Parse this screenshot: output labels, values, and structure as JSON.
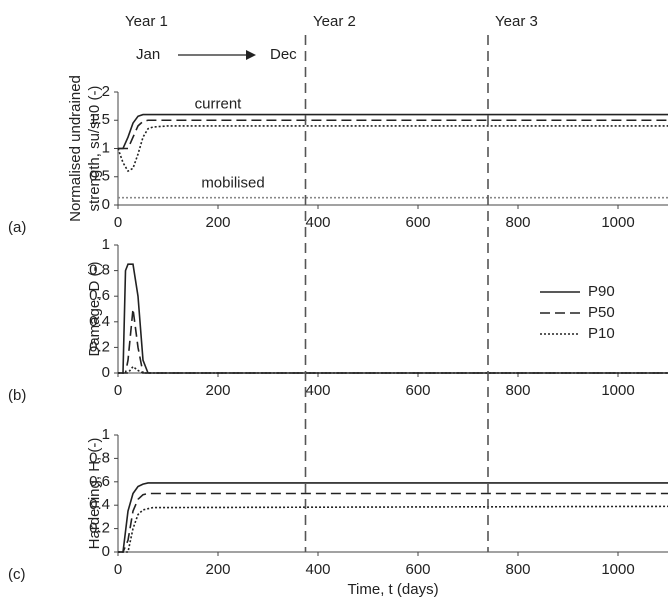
{
  "header": {
    "years": [
      "Year 1",
      "Year 2",
      "Year 3"
    ],
    "year_lines": [
      375,
      740
    ],
    "start": "Jan",
    "end": "Dec"
  },
  "chart_data": [
    {
      "type": "line",
      "panel_label": "(a)",
      "ylabel": [
        "Normalised undrained",
        "strength, su/su0 (-)"
      ],
      "xlim": [
        0,
        1100
      ],
      "xticks": [
        0,
        200,
        400,
        600,
        800,
        1000
      ],
      "ylim": [
        0,
        2
      ],
      "yticks": [
        0,
        0.5,
        1,
        1.5,
        2
      ],
      "annotations": [
        "current",
        "mobilised"
      ],
      "x": [
        0,
        10,
        20,
        30,
        40,
        50,
        60,
        70,
        100,
        400,
        800,
        1100
      ],
      "series": [
        {
          "name": "P90",
          "color": "#222222",
          "style": "solid",
          "values": [
            1,
            1,
            1.2,
            1.45,
            1.57,
            1.6,
            1.6,
            1.6,
            1.6,
            1.6,
            1.6,
            1.6
          ]
        },
        {
          "name": "P50",
          "color": "#222222",
          "style": "dashed",
          "values": [
            1,
            1,
            1,
            1.2,
            1.4,
            1.48,
            1.5,
            1.5,
            1.5,
            1.5,
            1.5,
            1.5
          ]
        },
        {
          "name": "P10",
          "color": "#222222",
          "style": "dotted",
          "values": [
            1,
            0.75,
            0.6,
            0.65,
            0.9,
            1.2,
            1.35,
            1.38,
            1.4,
            1.4,
            1.4,
            1.4
          ]
        },
        {
          "name": "mobilised",
          "color": "#888888",
          "style": "dotted",
          "values": [
            0.13,
            0.13,
            0.13,
            0.13,
            0.13,
            0.13,
            0.13,
            0.13,
            0.13,
            0.13,
            0.13,
            0.13
          ]
        }
      ]
    },
    {
      "type": "line",
      "panel_label": "(b)",
      "ylabel": [
        "Damage, D (-)"
      ],
      "legend": "upper right",
      "xlim": [
        0,
        1100
      ],
      "xticks": [
        0,
        200,
        400,
        600,
        800,
        1000
      ],
      "ylim": [
        0,
        1
      ],
      "yticks": [
        0,
        0.2,
        0.4,
        0.6,
        0.8,
        1
      ],
      "x": [
        0,
        10,
        15,
        20,
        30,
        40,
        50,
        60,
        70,
        1100
      ],
      "series": [
        {
          "name": "P90",
          "color": "#222222",
          "style": "solid",
          "values": [
            0,
            0,
            0.8,
            0.85,
            0.85,
            0.6,
            0.1,
            0,
            0,
            0
          ]
        },
        {
          "name": "P50",
          "color": "#222222",
          "style": "dashed",
          "values": [
            0,
            0,
            0,
            0.1,
            0.5,
            0.2,
            0,
            0,
            0,
            0
          ]
        },
        {
          "name": "P10",
          "color": "#222222",
          "style": "dotted",
          "values": [
            0,
            0,
            0,
            0,
            0.05,
            0.02,
            0,
            0,
            0,
            0
          ]
        }
      ]
    },
    {
      "type": "line",
      "panel_label": "(c)",
      "ylabel": [
        "Hardening, H, (-)"
      ],
      "xlabel": "Time, t (days)",
      "xlim": [
        0,
        1100
      ],
      "xticks": [
        0,
        200,
        400,
        600,
        800,
        1000
      ],
      "ylim": [
        0,
        1
      ],
      "yticks": [
        0,
        0.2,
        0.4,
        0.6,
        0.8,
        1
      ],
      "x": [
        0,
        10,
        20,
        30,
        40,
        50,
        60,
        70,
        100,
        1100
      ],
      "series": [
        {
          "name": "P90",
          "color": "#222222",
          "style": "solid",
          "values": [
            0,
            0,
            0.35,
            0.5,
            0.56,
            0.58,
            0.59,
            0.59,
            0.59,
            0.59
          ]
        },
        {
          "name": "P50",
          "color": "#222222",
          "style": "dashed",
          "values": [
            0,
            0,
            0.1,
            0.35,
            0.45,
            0.49,
            0.5,
            0.5,
            0.5,
            0.5
          ]
        },
        {
          "name": "P10",
          "color": "#222222",
          "style": "dotted",
          "values": [
            0,
            0,
            0,
            0.2,
            0.32,
            0.36,
            0.37,
            0.38,
            0.38,
            0.39
          ]
        }
      ]
    }
  ]
}
